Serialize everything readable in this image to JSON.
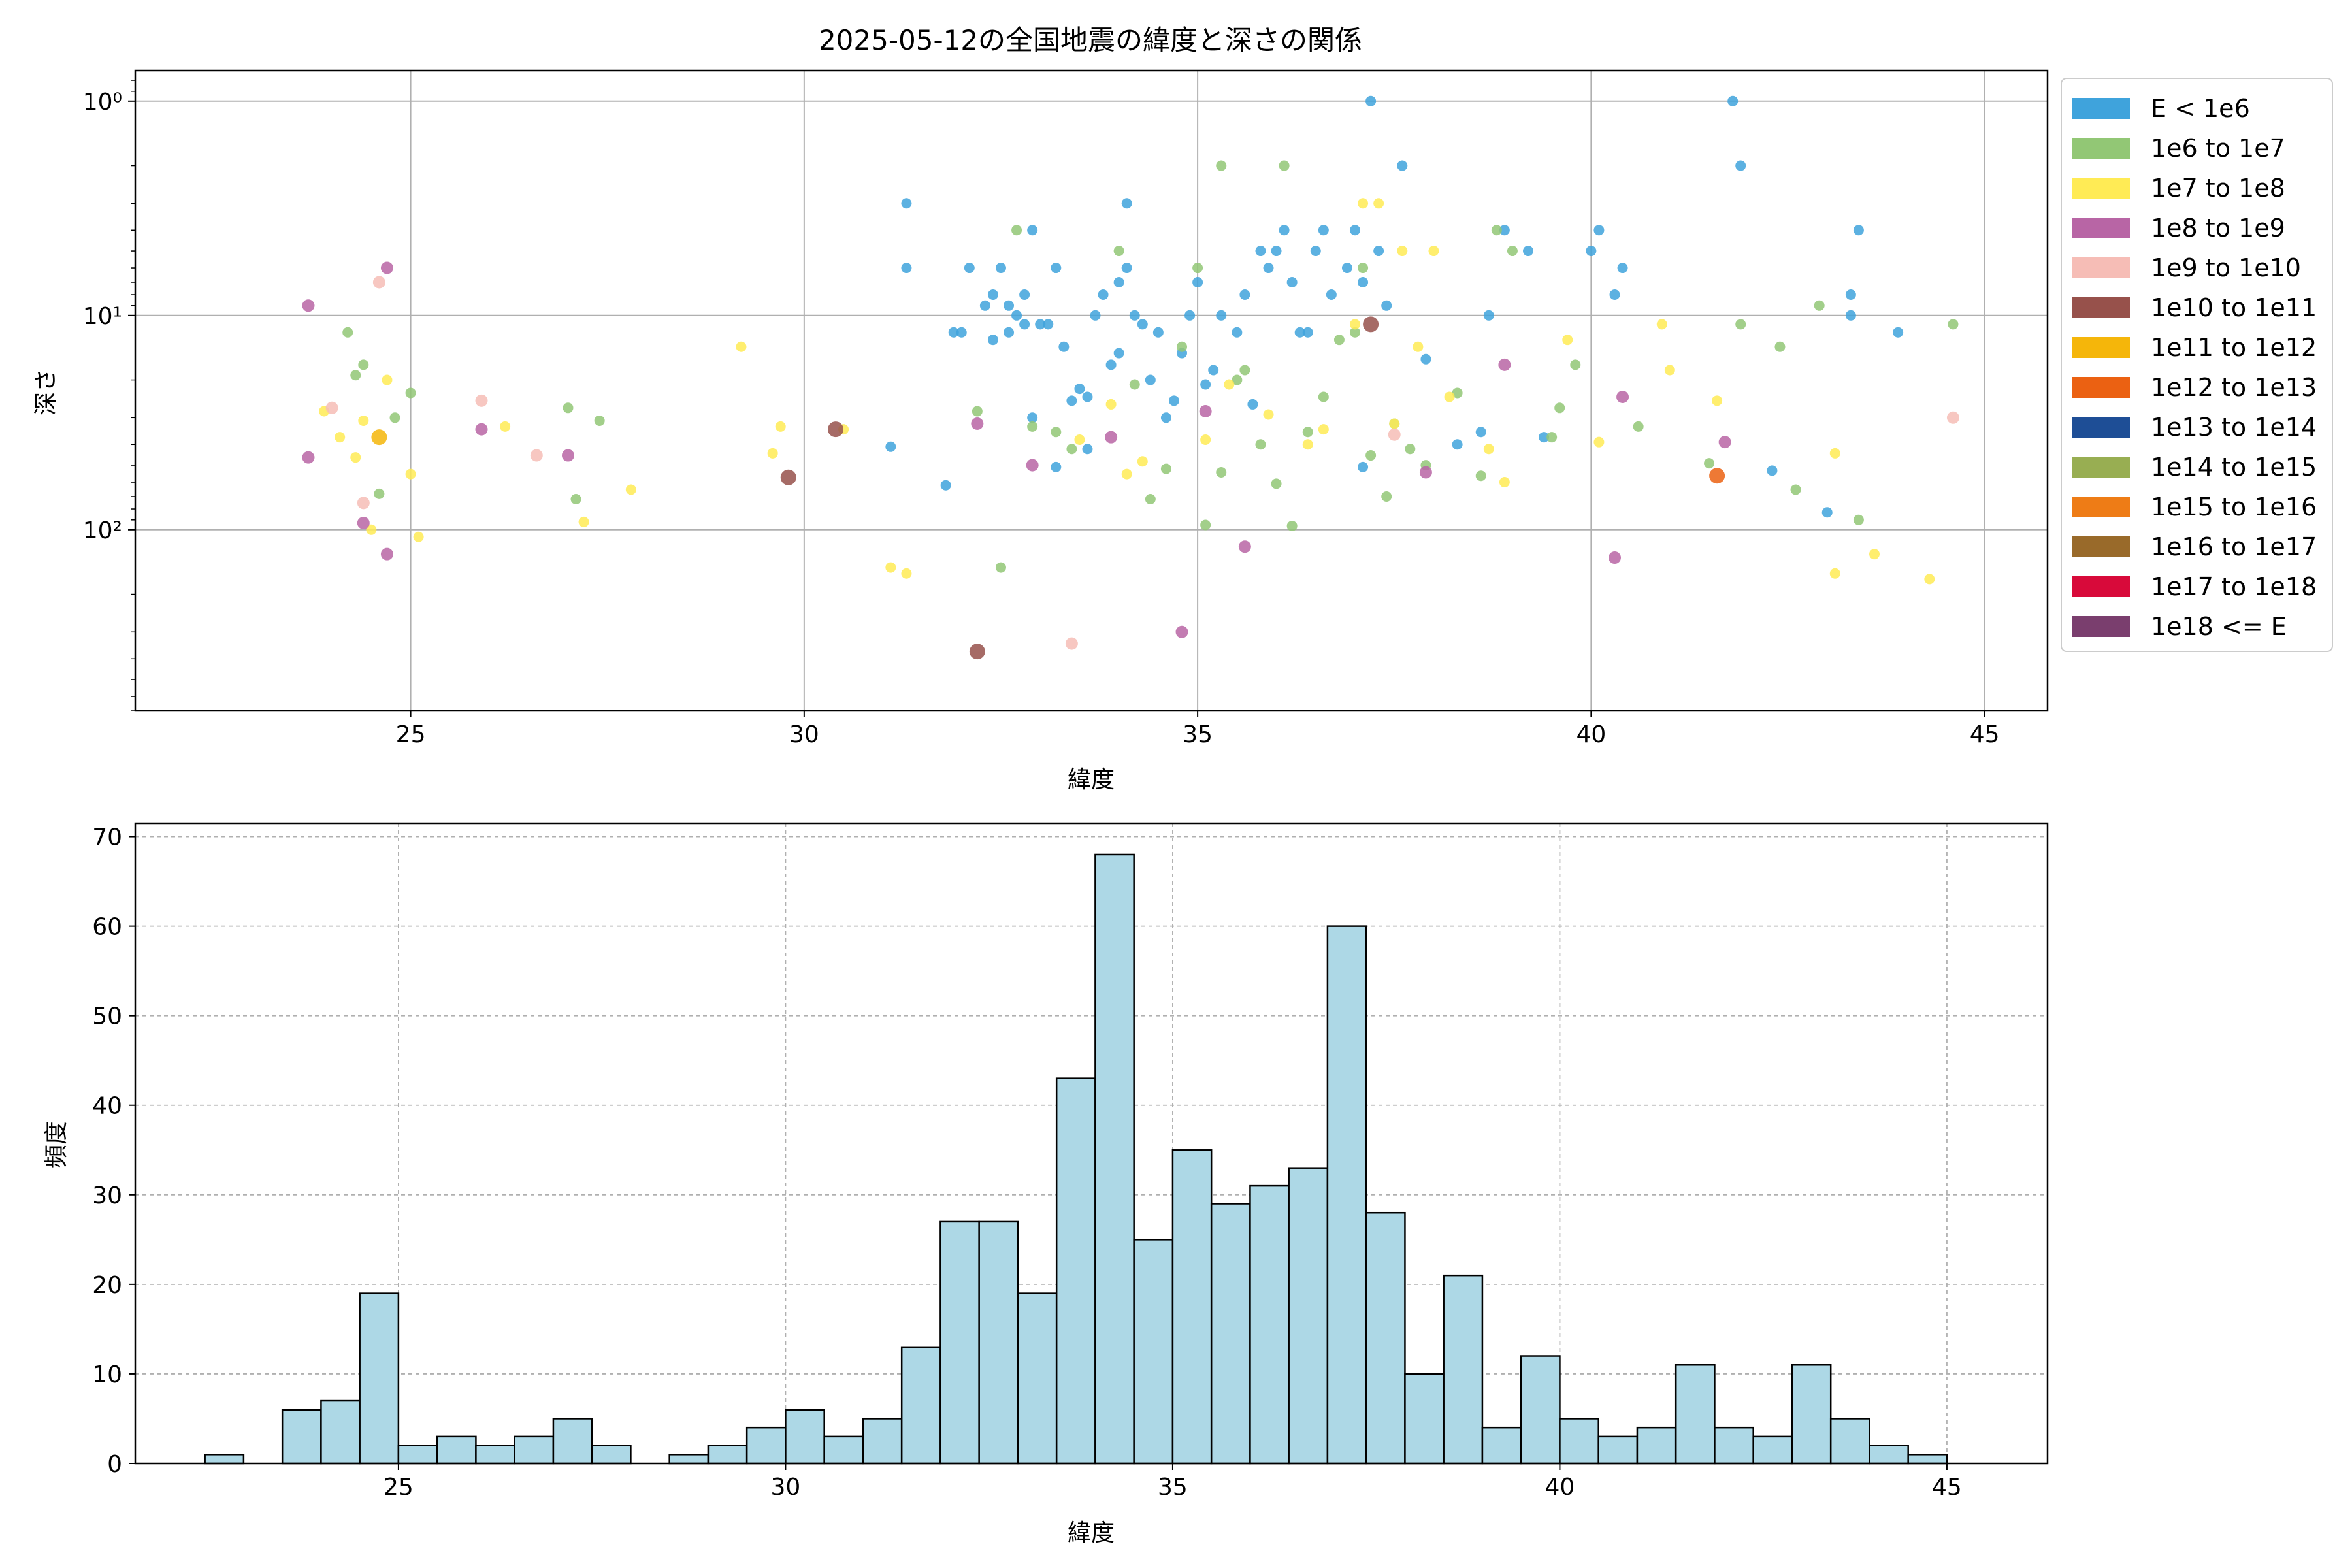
{
  "chart_data": [
    {
      "type": "scatter",
      "title": "2025-05-12の全国地震の緯度と深さの関係",
      "xlabel": "緯度",
      "ylabel": "深さ",
      "xlim": [
        21.5,
        45.8
      ],
      "ylim": [
        0.72,
        700
      ],
      "yscale": "log",
      "y_inverted": true,
      "grid": true,
      "legend_position": "outside-right",
      "x_ticks": [
        25,
        30,
        35,
        40,
        45
      ],
      "y_ticks": [
        1,
        10,
        100
      ],
      "y_tick_labels": [
        "10⁰",
        "10¹",
        "10²"
      ],
      "series": [
        {
          "name": "E < 1e6",
          "color": "#3FA3DC",
          "points": [
            [
              31.3,
              3
            ],
            [
              31.3,
              6
            ],
            [
              31.9,
              12
            ],
            [
              32.0,
              12
            ],
            [
              32.1,
              6
            ],
            [
              32.3,
              9
            ],
            [
              32.4,
              8
            ],
            [
              32.4,
              13
            ],
            [
              32.5,
              6
            ],
            [
              32.6,
              9
            ],
            [
              32.6,
              12
            ],
            [
              32.7,
              10
            ],
            [
              32.8,
              11
            ],
            [
              32.8,
              8
            ],
            [
              32.9,
              4
            ],
            [
              32.9,
              30
            ],
            [
              33.0,
              11
            ],
            [
              33.1,
              11
            ],
            [
              33.2,
              6
            ],
            [
              33.3,
              14
            ],
            [
              33.4,
              25
            ],
            [
              33.5,
              22
            ],
            [
              33.6,
              24
            ],
            [
              33.7,
              10
            ],
            [
              33.8,
              8
            ],
            [
              33.9,
              17
            ],
            [
              34.0,
              15
            ],
            [
              34.0,
              7
            ],
            [
              34.1,
              6
            ],
            [
              34.1,
              3
            ],
            [
              34.2,
              10
            ],
            [
              34.3,
              11
            ],
            [
              34.5,
              12
            ],
            [
              34.6,
              30
            ],
            [
              34.7,
              25
            ],
            [
              34.8,
              15
            ],
            [
              34.9,
              10
            ],
            [
              35.0,
              7
            ],
            [
              35.1,
              21
            ],
            [
              35.2,
              18
            ],
            [
              35.3,
              10
            ],
            [
              35.5,
              12
            ],
            [
              35.6,
              8
            ],
            [
              35.8,
              5
            ],
            [
              35.9,
              6
            ],
            [
              36.0,
              5
            ],
            [
              36.1,
              4
            ],
            [
              36.2,
              7
            ],
            [
              36.4,
              12
            ],
            [
              36.5,
              5
            ],
            [
              36.6,
              4
            ],
            [
              36.7,
              8
            ],
            [
              36.9,
              6
            ],
            [
              37.0,
              4
            ],
            [
              37.1,
              7
            ],
            [
              37.2,
              1
            ],
            [
              37.3,
              5
            ],
            [
              37.4,
              9
            ],
            [
              37.6,
              2
            ],
            [
              37.9,
              16
            ],
            [
              38.3,
              40
            ],
            [
              38.6,
              35
            ],
            [
              38.9,
              4
            ],
            [
              39.2,
              5
            ],
            [
              39.4,
              37
            ],
            [
              40.0,
              5
            ],
            [
              40.1,
              4
            ],
            [
              40.3,
              8
            ],
            [
              40.4,
              6
            ],
            [
              41.8,
              1
            ],
            [
              41.9,
              2
            ],
            [
              42.3,
              53
            ],
            [
              43.0,
              83
            ],
            [
              43.3,
              8
            ],
            [
              43.3,
              10
            ],
            [
              43.4,
              4
            ],
            [
              43.9,
              12
            ],
            [
              31.1,
              41
            ],
            [
              31.8,
              62
            ],
            [
              33.6,
              42
            ],
            [
              33.2,
              51
            ],
            [
              37.1,
              51
            ],
            [
              38.7,
              10
            ],
            [
              35.7,
              26
            ],
            [
              36.3,
              12
            ],
            [
              34.4,
              20
            ]
          ]
        },
        {
          "name": "1e6 to 1e7",
          "color": "#92C775",
          "points": [
            [
              24.2,
              12
            ],
            [
              24.3,
              19
            ],
            [
              24.4,
              17
            ],
            [
              24.6,
              68
            ],
            [
              24.8,
              30
            ],
            [
              25.0,
              23
            ],
            [
              27.0,
              27
            ],
            [
              27.1,
              72
            ],
            [
              27.4,
              31
            ],
            [
              32.2,
              28
            ],
            [
              32.5,
              150
            ],
            [
              32.7,
              4
            ],
            [
              32.9,
              33
            ],
            [
              33.2,
              35
            ],
            [
              33.4,
              42
            ],
            [
              34.0,
              5
            ],
            [
              34.2,
              21
            ],
            [
              34.4,
              72
            ],
            [
              34.6,
              52
            ],
            [
              34.8,
              14
            ],
            [
              35.0,
              6
            ],
            [
              35.1,
              95
            ],
            [
              35.3,
              2
            ],
            [
              35.5,
              20
            ],
            [
              35.6,
              18
            ],
            [
              35.8,
              40
            ],
            [
              36.0,
              61
            ],
            [
              36.1,
              2
            ],
            [
              36.2,
              96
            ],
            [
              36.4,
              35
            ],
            [
              36.6,
              24
            ],
            [
              36.8,
              13
            ],
            [
              37.0,
              12
            ],
            [
              37.1,
              6
            ],
            [
              37.2,
              45
            ],
            [
              37.4,
              70
            ],
            [
              37.7,
              42
            ],
            [
              37.9,
              50
            ],
            [
              38.3,
              23
            ],
            [
              38.6,
              56
            ],
            [
              38.8,
              4
            ],
            [
              39.0,
              5
            ],
            [
              39.5,
              37
            ],
            [
              39.6,
              27
            ],
            [
              39.8,
              17
            ],
            [
              41.9,
              11
            ],
            [
              42.4,
              14
            ],
            [
              42.6,
              65
            ],
            [
              42.9,
              9
            ],
            [
              43.4,
              90
            ],
            [
              44.6,
              11
            ],
            [
              41.5,
              49
            ],
            [
              40.6,
              33
            ],
            [
              37.5,
              32
            ],
            [
              35.3,
              54
            ]
          ]
        },
        {
          "name": "1e7 to 1e8",
          "color": "#FFEB55",
          "points": [
            [
              23.9,
              28
            ],
            [
              24.1,
              37
            ],
            [
              24.3,
              46
            ],
            [
              24.4,
              31
            ],
            [
              24.5,
              100
            ],
            [
              24.7,
              20
            ],
            [
              25.0,
              55
            ],
            [
              25.1,
              108
            ],
            [
              26.2,
              33
            ],
            [
              27.2,
              92
            ],
            [
              27.8,
              65
            ],
            [
              29.2,
              14
            ],
            [
              29.6,
              44
            ],
            [
              29.7,
              33
            ],
            [
              30.5,
              34
            ],
            [
              31.1,
              150
            ],
            [
              31.3,
              160
            ],
            [
              33.9,
              26
            ],
            [
              34.1,
              55
            ],
            [
              34.3,
              48
            ],
            [
              35.1,
              38
            ],
            [
              35.4,
              21
            ],
            [
              35.9,
              29
            ],
            [
              36.4,
              40
            ],
            [
              36.6,
              34
            ],
            [
              37.0,
              11
            ],
            [
              37.3,
              3
            ],
            [
              37.5,
              32
            ],
            [
              37.6,
              5
            ],
            [
              37.8,
              14
            ],
            [
              38.0,
              5
            ],
            [
              38.2,
              24
            ],
            [
              38.7,
              42
            ],
            [
              38.9,
              60
            ],
            [
              39.7,
              13
            ],
            [
              40.1,
              39
            ],
            [
              40.9,
              11
            ],
            [
              41.0,
              18
            ],
            [
              41.6,
              25
            ],
            [
              43.1,
              44
            ],
            [
              43.1,
              160
            ],
            [
              43.6,
              130
            ],
            [
              44.3,
              170
            ],
            [
              37.1,
              3
            ],
            [
              33.5,
              38
            ]
          ]
        },
        {
          "name": "1e8 to 1e9",
          "color": "#B865A5",
          "points": [
            [
              23.7,
              9
            ],
            [
              23.7,
              46
            ],
            [
              24.4,
              93
            ],
            [
              24.7,
              6
            ],
            [
              24.7,
              130
            ],
            [
              25.9,
              34
            ],
            [
              27.0,
              45
            ],
            [
              32.2,
              32
            ],
            [
              32.9,
              50
            ],
            [
              33.9,
              37
            ],
            [
              34.8,
              300
            ],
            [
              35.1,
              28
            ],
            [
              35.6,
              120
            ],
            [
              37.9,
              54
            ],
            [
              38.9,
              17
            ],
            [
              40.4,
              24
            ],
            [
              40.3,
              135
            ],
            [
              41.7,
              39
            ]
          ]
        },
        {
          "name": "1e9 to 1e10",
          "color": "#F6BDB6",
          "points": [
            [
              24.0,
              27
            ],
            [
              24.4,
              75
            ],
            [
              24.6,
              7
            ],
            [
              25.9,
              25
            ],
            [
              26.6,
              45
            ],
            [
              33.4,
              340
            ],
            [
              37.5,
              36
            ],
            [
              44.6,
              30
            ]
          ]
        },
        {
          "name": "1e10 to 1e11",
          "color": "#97514B",
          "points": [
            [
              29.8,
              57
            ],
            [
              30.4,
              34
            ],
            [
              32.2,
              370
            ],
            [
              37.2,
              11
            ]
          ]
        },
        {
          "name": "1e11 to 1e12",
          "color": "#F5B60A",
          "points": [
            [
              24.6,
              37
            ]
          ]
        },
        {
          "name": "1e12 to 1e13",
          "color": "#EB6112",
          "points": [
            [
              41.6,
              56
            ]
          ]
        },
        {
          "name": "1e13 to 1e14",
          "color": "#1E4E96",
          "points": []
        },
        {
          "name": "1e14 to 1e15",
          "color": "#98AE52",
          "points": []
        },
        {
          "name": "1e15 to 1e16",
          "color": "#EE7C16",
          "points": []
        },
        {
          "name": "1e16 to 1e17",
          "color": "#996A2A",
          "points": []
        },
        {
          "name": "1e17 to 1e18",
          "color": "#D80A3A",
          "points": []
        },
        {
          "name": "1e18 <= E",
          "color": "#7A3E6E",
          "points": []
        }
      ]
    },
    {
      "type": "bar",
      "subtype": "histogram",
      "title": "",
      "xlabel": "緯度",
      "ylabel": "頻度",
      "xlim": [
        21.6,
        46.3
      ],
      "ylim": [
        0,
        71.5
      ],
      "grid": true,
      "grid_style": "dashed",
      "bar_color": "#ADD8E6",
      "edge_color": "#000000",
      "x_ticks": [
        25,
        30,
        35,
        40,
        45
      ],
      "y_ticks": [
        0,
        10,
        20,
        30,
        40,
        50,
        60,
        70
      ],
      "bin_width": 0.5,
      "bin_edges_start": 22.5,
      "values": [
        1,
        0,
        6,
        7,
        19,
        2,
        3,
        2,
        3,
        5,
        2,
        0,
        1,
        2,
        4,
        6,
        3,
        5,
        13,
        27,
        27,
        19,
        43,
        68,
        25,
        35,
        29,
        31,
        33,
        60,
        28,
        10,
        21,
        4,
        12,
        5,
        3,
        4,
        11,
        4,
        3,
        11,
        5,
        2,
        1
      ]
    }
  ]
}
